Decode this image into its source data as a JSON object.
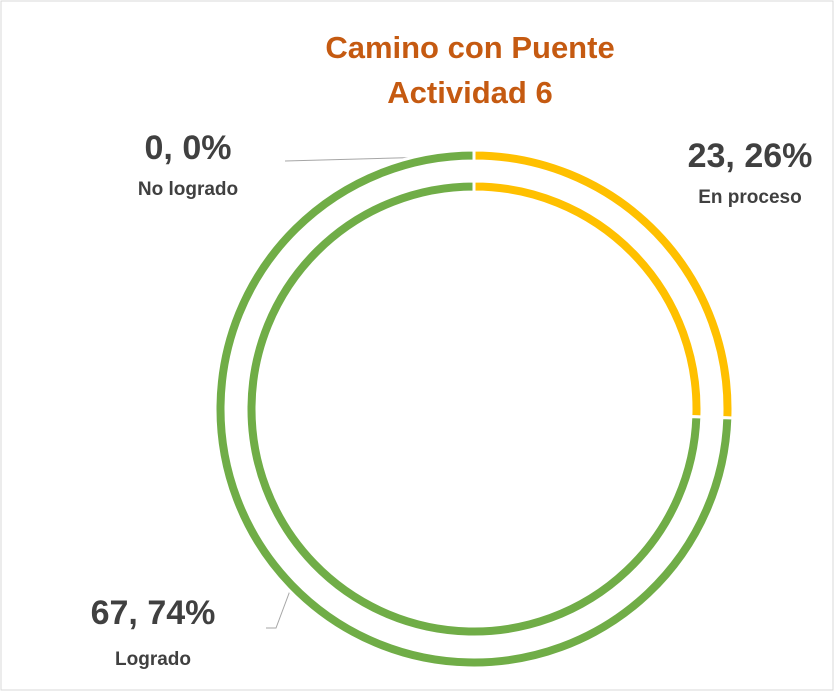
{
  "chart_data": {
    "type": "doughnut",
    "title": [
      "Camino con Puente",
      "Actividad 6"
    ],
    "categories": [
      "No logrado",
      "En proceso",
      "Logrado"
    ],
    "colors": [
      "#a5a5a5",
      "#ffc000",
      "#70ad47"
    ],
    "series": [
      {
        "values": [
          0,
          23,
          67
        ],
        "value_labels": [
          "0, 0%",
          "23, 26%",
          "67, 74%"
        ]
      },
      {
        "values": [
          0,
          23,
          67
        ]
      }
    ]
  }
}
